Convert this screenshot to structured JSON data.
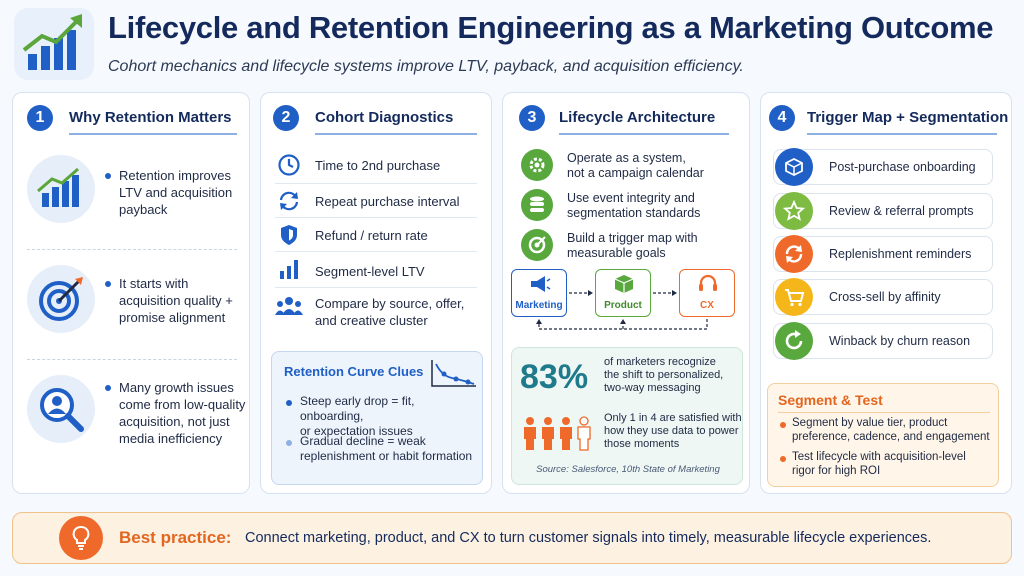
{
  "header": {
    "title": "Lifecycle and Retention Engineering as a Marketing Outcome",
    "subtitle": "Cohort mechanics and lifecycle systems improve LTV, payback, and acquisition efficiency."
  },
  "panel1": {
    "number": "1",
    "heading": "Why Retention Matters",
    "items": [
      {
        "icon": "growth-chart-icon",
        "text_lines": [
          "Retention improves",
          "LTV and acquisition",
          "payback"
        ]
      },
      {
        "icon": "target-icon",
        "text_lines": [
          "It starts with",
          "acquisition quality +",
          "promise alignment"
        ]
      },
      {
        "icon": "magnifier-person-icon",
        "text_lines": [
          "Many growth issues",
          "come from low-quality",
          "acquisition, not just",
          "media inefficiency"
        ]
      }
    ]
  },
  "panel2": {
    "number": "2",
    "heading": "Cohort Diagnostics",
    "rows": [
      {
        "icon": "clock-icon",
        "label": "Time to 2nd purchase"
      },
      {
        "icon": "repeat-icon",
        "label": "Repeat purchase interval"
      },
      {
        "icon": "shield-icon",
        "label": "Refund / return rate"
      },
      {
        "icon": "bar-chart-icon",
        "label": "Segment-level LTV"
      },
      {
        "icon": "people-icon",
        "label_lines": [
          "Compare by source, offer,",
          "and creative cluster"
        ]
      }
    ],
    "clues": {
      "title": "Retention Curve Clues",
      "items": [
        {
          "lines": [
            "Steep early drop = fit, onboarding,",
            "or expectation issues"
          ]
        },
        {
          "lines": [
            "Gradual decline = weak",
            "replenishment or habit formation"
          ]
        }
      ]
    }
  },
  "panel3": {
    "number": "3",
    "heading": "Lifecycle Architecture",
    "items": [
      {
        "icon": "gear-icon",
        "lines": [
          "Operate as a system,",
          "not a campaign calendar"
        ]
      },
      {
        "icon": "database-icon",
        "lines": [
          "Use event integrity and",
          "segmentation standards"
        ]
      },
      {
        "icon": "target-goal-icon",
        "lines": [
          "Build a trigger map with",
          "measurable goals"
        ]
      }
    ],
    "flow": {
      "marketing": "Marketing",
      "product": "Product",
      "cx": "CX"
    },
    "stat": {
      "value": "83%",
      "lines": [
        "of marketers recognize",
        "the shift to personalized,",
        "two-way messaging"
      ],
      "satisfied_lines": [
        "Only 1 in 4 are satisfied with",
        "how they use data to power",
        "those moments"
      ],
      "people_filled": 3,
      "people_total": 4,
      "source": "Source: Salesforce, 10th State of Marketing"
    }
  },
  "panel4": {
    "number": "4",
    "heading": "Trigger Map + Segmentation",
    "triggers": [
      {
        "icon": "box-icon",
        "label": "Post-purchase onboarding",
        "color": "#1f5fc6"
      },
      {
        "icon": "star-icon",
        "label": "Review & referral prompts",
        "color": "#7dbb42"
      },
      {
        "icon": "refresh-icon",
        "label": "Replenishment reminders",
        "color": "#ef6a2a"
      },
      {
        "icon": "cart-icon",
        "label": "Cross-sell by affinity",
        "color": "#f5b619"
      },
      {
        "icon": "winback-icon",
        "label": "Winback by churn reason",
        "color": "#58a83e"
      }
    ],
    "segment": {
      "title": "Segment & Test",
      "items": [
        {
          "lines": [
            "Segment by value tier, product",
            "preference, cadence, and engagement"
          ]
        },
        {
          "lines": [
            "Test lifecycle with acquisition-level",
            "rigor for high ROI"
          ]
        }
      ]
    }
  },
  "footer": {
    "label": "Best practice:",
    "text": "Connect marketing, product, and CX to turn customer signals into timely, measurable lifecycle experiences."
  }
}
